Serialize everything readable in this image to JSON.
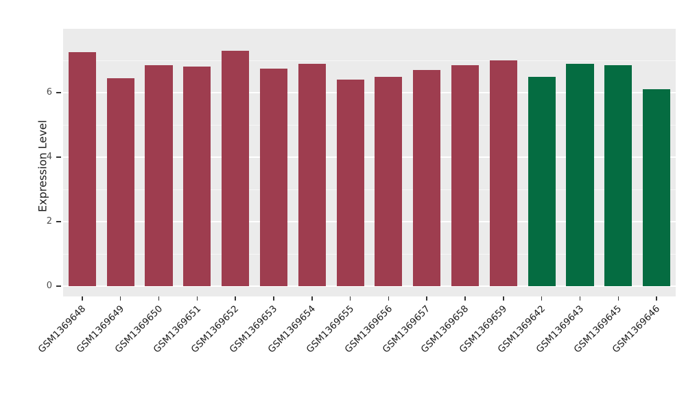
{
  "chart_data": {
    "type": "bar",
    "title": "",
    "xlabel": "",
    "ylabel": "Expression Level",
    "categories": [
      "GSM1369648",
      "GSM1369649",
      "GSM1369650",
      "GSM1369651",
      "GSM1369652",
      "GSM1369653",
      "GSM1369654",
      "GSM1369655",
      "GSM1369656",
      "GSM1369657",
      "GSM1369658",
      "GSM1369659",
      "GSM1369642",
      "GSM1369643",
      "GSM1369645",
      "GSM1369646"
    ],
    "values": [
      7.25,
      6.45,
      6.85,
      6.8,
      7.3,
      6.75,
      6.9,
      6.4,
      6.5,
      6.7,
      6.85,
      7.0,
      6.5,
      6.9,
      6.85,
      6.1
    ],
    "bar_groups": [
      "red",
      "red",
      "red",
      "red",
      "red",
      "red",
      "red",
      "red",
      "red",
      "red",
      "red",
      "red",
      "green",
      "green",
      "green",
      "green"
    ],
    "group_colors": {
      "red": "#9e3d4f",
      "green": "#056c41"
    },
    "ylim": [
      0,
      7.6
    ],
    "yticks_major": [
      0,
      2,
      4,
      6
    ],
    "yticks_minor": [
      1,
      3,
      5,
      7
    ],
    "panel_background": "#ebebeb",
    "grid_color": "#ffffff",
    "grid": "on",
    "legend": "none",
    "x_label_angle": 45
  }
}
